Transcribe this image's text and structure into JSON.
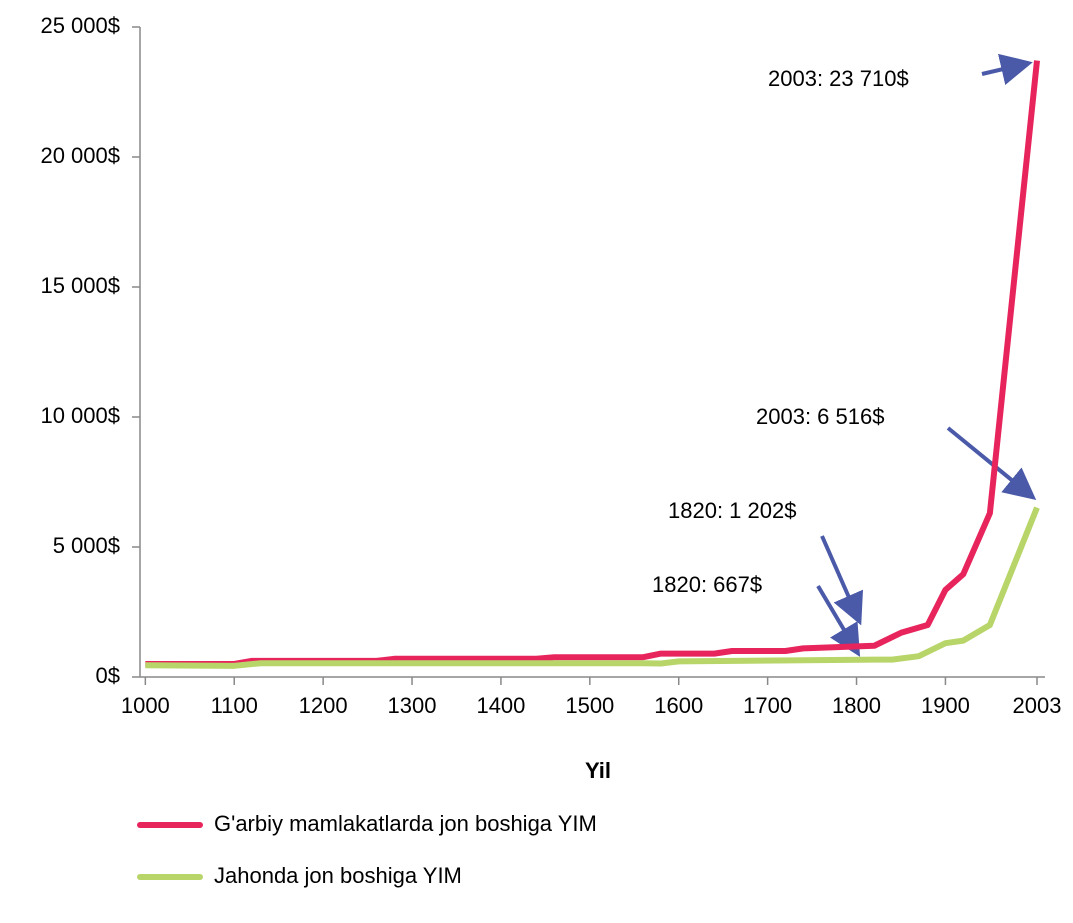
{
  "chart_data": {
    "type": "line",
    "x_label": "Yil",
    "xlim": [
      994,
      2012
    ],
    "xticks": [
      1000,
      1100,
      1200,
      1300,
      1400,
      1500,
      1600,
      1700,
      1800,
      1900,
      2003
    ],
    "ylim": [
      0,
      25000
    ],
    "yticks": [
      {
        "value": 0,
        "label": "0$"
      },
      {
        "value": 5000,
        "label": "5 000$"
      },
      {
        "value": 10000,
        "label": "10 000$"
      },
      {
        "value": 15000,
        "label": "15 000$"
      },
      {
        "value": 20000,
        "label": "20 000$"
      },
      {
        "value": 25000,
        "label": "25 000$"
      }
    ],
    "series": [
      {
        "name": "G'arbiy mamlakatlarda jon boshiga YIM",
        "color": "#e8245c",
        "x": [
          1000,
          1100,
          1120,
          1260,
          1280,
          1440,
          1460,
          1560,
          1580,
          1640,
          1660,
          1720,
          1740,
          1820,
          1850,
          1880,
          1900,
          1920,
          1950,
          2003
        ],
        "values": [
          500,
          500,
          620,
          620,
          700,
          700,
          760,
          760,
          900,
          900,
          1000,
          1000,
          1100,
          1202,
          1700,
          2000,
          3350,
          3950,
          6300,
          23710
        ]
      },
      {
        "name": "Jahonda jon boshiga YIM",
        "color": "#b8d56a",
        "x": [
          1000,
          1100,
          1130,
          1560,
          1580,
          1600,
          1820,
          1840,
          1870,
          1900,
          1920,
          1950,
          2003
        ],
        "values": [
          450,
          430,
          530,
          530,
          520,
          600,
          667,
          667,
          800,
          1300,
          1400,
          2000,
          6516
        ]
      }
    ],
    "annotations": [
      "2003: 23 710$",
      "2003: 6 516$",
      "1820: 1 202$",
      "1820: 667$"
    ]
  }
}
